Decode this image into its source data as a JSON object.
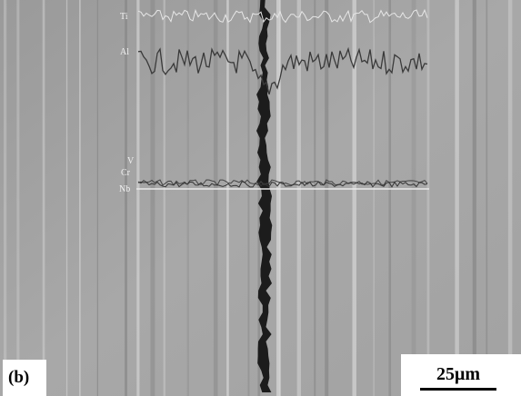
{
  "labels": {
    "ti": "Ti",
    "al": "Al",
    "v": "V",
    "cr": "Cr",
    "nb": "Nb"
  },
  "panel_label": "(b)",
  "scale_bar": "25μm"
}
